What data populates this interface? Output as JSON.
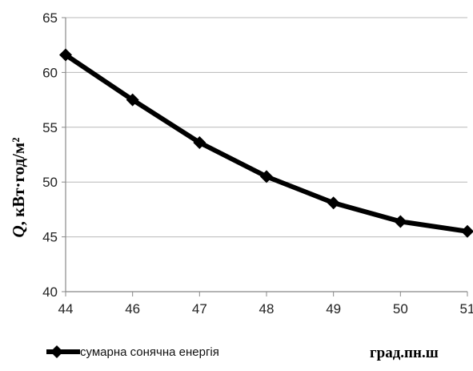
{
  "chart_data": {
    "type": "line",
    "categories": [
      "44",
      "46",
      "47",
      "48",
      "49",
      "50",
      "51"
    ],
    "series": [
      {
        "name": "сумарна сонячна енергія",
        "values": [
          61.6,
          57.5,
          53.6,
          50.5,
          48.1,
          46.4,
          45.5
        ]
      }
    ],
    "ylabel_symbol": "Q",
    "ylabel_units": ", кВт·год/м²",
    "xlabel": "град.пн.ш",
    "ylim": [
      40,
      65
    ],
    "yticks": [
      "40",
      "45",
      "50",
      "55",
      "60",
      "65"
    ],
    "grid": true,
    "legend_position": "bottom-left",
    "line_color": "#000000",
    "grid_color": "#b8b8b8",
    "marker": "diamond"
  }
}
